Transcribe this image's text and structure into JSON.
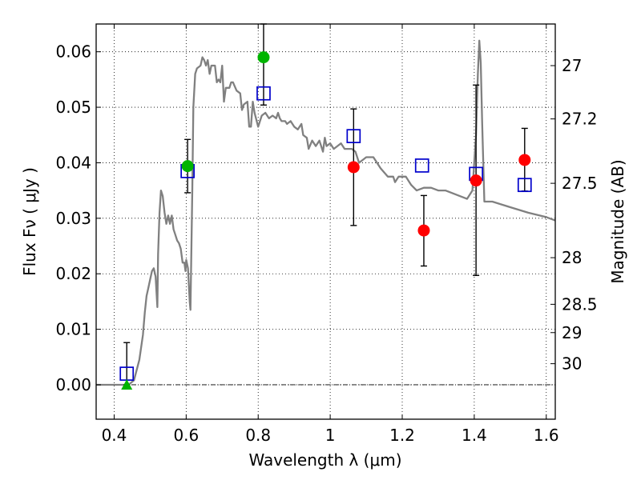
{
  "chart_data": {
    "type": "scatter",
    "xlabel": "Wavelength  λ (μm)",
    "ylabel": "Flux  Fν  ( μJy )",
    "y2label": "Magnitude (AB)",
    "xlim": [
      0.35,
      1.625
    ],
    "ylim": [
      -0.0062,
      0.065
    ],
    "grid": true,
    "x_ticks": [
      0.4,
      0.6,
      0.8,
      1.0,
      1.2,
      1.4,
      1.6
    ],
    "x_tick_labels": [
      "0.4",
      "0.6",
      "0.8",
      "1",
      "1.2",
      "1.4",
      "1.6"
    ],
    "y_ticks": [
      0.0,
      0.01,
      0.02,
      0.03,
      0.04,
      0.05,
      0.06
    ],
    "y_tick_labels": [
      "0.00",
      "0.01",
      "0.02",
      "0.03",
      "0.04",
      "0.05",
      "0.06"
    ],
    "y2_ticks": [
      {
        "label": "27",
        "flux": 0.0575
      },
      {
        "label": "27.2",
        "flux": 0.0479
      },
      {
        "label": "27.5",
        "flux": 0.0363
      },
      {
        "label": "28",
        "flux": 0.0229
      },
      {
        "label": "28.5",
        "flux": 0.0145
      },
      {
        "label": "29",
        "flux": 0.0094
      },
      {
        "label": "30",
        "flux": 0.0038
      }
    ],
    "colors": {
      "model": "#808080",
      "square": "#0000cc",
      "green": "#00b400",
      "red": "#ff0000",
      "errorbar": "#000000"
    },
    "series": [
      {
        "marker": "line",
        "color": "#808080",
        "points": [
          [
            0.35,
            0.0
          ],
          [
            0.42,
            0.0
          ],
          [
            0.44,
            0.0
          ],
          [
            0.455,
            0.0008
          ],
          [
            0.47,
            0.0045
          ],
          [
            0.48,
            0.009
          ],
          [
            0.485,
            0.013
          ],
          [
            0.49,
            0.016
          ],
          [
            0.495,
            0.0175
          ],
          [
            0.5,
            0.019
          ],
          [
            0.505,
            0.0205
          ],
          [
            0.51,
            0.021
          ],
          [
            0.515,
            0.0195
          ],
          [
            0.52,
            0.014
          ],
          [
            0.522,
            0.0235
          ],
          [
            0.526,
            0.031
          ],
          [
            0.53,
            0.035
          ],
          [
            0.535,
            0.034
          ],
          [
            0.54,
            0.031
          ],
          [
            0.545,
            0.029
          ],
          [
            0.55,
            0.0305
          ],
          [
            0.555,
            0.029
          ],
          [
            0.56,
            0.0305
          ],
          [
            0.565,
            0.028
          ],
          [
            0.57,
            0.027
          ],
          [
            0.575,
            0.026
          ],
          [
            0.58,
            0.0255
          ],
          [
            0.585,
            0.0245
          ],
          [
            0.59,
            0.022
          ],
          [
            0.595,
            0.022
          ],
          [
            0.598,
            0.0205
          ],
          [
            0.6,
            0.0225
          ],
          [
            0.605,
            0.021
          ],
          [
            0.61,
            0.015
          ],
          [
            0.612,
            0.0135
          ],
          [
            0.617,
            0.035
          ],
          [
            0.62,
            0.05
          ],
          [
            0.625,
            0.056
          ],
          [
            0.63,
            0.057
          ],
          [
            0.64,
            0.0575
          ],
          [
            0.645,
            0.059
          ],
          [
            0.65,
            0.0585
          ],
          [
            0.655,
            0.0575
          ],
          [
            0.66,
            0.0585
          ],
          [
            0.665,
            0.056
          ],
          [
            0.67,
            0.0575
          ],
          [
            0.68,
            0.0575
          ],
          [
            0.685,
            0.0545
          ],
          [
            0.69,
            0.055
          ],
          [
            0.695,
            0.0545
          ],
          [
            0.7,
            0.0575
          ],
          [
            0.705,
            0.051
          ],
          [
            0.71,
            0.0535
          ],
          [
            0.72,
            0.0535
          ],
          [
            0.725,
            0.0545
          ],
          [
            0.73,
            0.0545
          ],
          [
            0.74,
            0.053
          ],
          [
            0.75,
            0.0525
          ],
          [
            0.755,
            0.0495
          ],
          [
            0.76,
            0.0505
          ],
          [
            0.77,
            0.051
          ],
          [
            0.775,
            0.0465
          ],
          [
            0.78,
            0.0465
          ],
          [
            0.785,
            0.051
          ],
          [
            0.79,
            0.049
          ],
          [
            0.8,
            0.0465
          ],
          [
            0.81,
            0.0485
          ],
          [
            0.82,
            0.049
          ],
          [
            0.83,
            0.048
          ],
          [
            0.84,
            0.0485
          ],
          [
            0.85,
            0.048
          ],
          [
            0.855,
            0.049
          ],
          [
            0.86,
            0.048
          ],
          [
            0.865,
            0.0475
          ],
          [
            0.875,
            0.0475
          ],
          [
            0.88,
            0.047
          ],
          [
            0.89,
            0.0475
          ],
          [
            0.9,
            0.0465
          ],
          [
            0.91,
            0.046
          ],
          [
            0.92,
            0.047
          ],
          [
            0.925,
            0.045
          ],
          [
            0.935,
            0.0445
          ],
          [
            0.94,
            0.0425
          ],
          [
            0.95,
            0.044
          ],
          [
            0.96,
            0.043
          ],
          [
            0.97,
            0.044
          ],
          [
            0.98,
            0.042
          ],
          [
            0.985,
            0.0445
          ],
          [
            0.99,
            0.043
          ],
          [
            1.0,
            0.0435
          ],
          [
            1.01,
            0.0425
          ],
          [
            1.02,
            0.043
          ],
          [
            1.03,
            0.0435
          ],
          [
            1.04,
            0.0425
          ],
          [
            1.06,
            0.0425
          ],
          [
            1.07,
            0.042
          ],
          [
            1.08,
            0.04
          ],
          [
            1.1,
            0.041
          ],
          [
            1.12,
            0.041
          ],
          [
            1.14,
            0.039
          ],
          [
            1.16,
            0.0375
          ],
          [
            1.175,
            0.0375
          ],
          [
            1.18,
            0.0365
          ],
          [
            1.19,
            0.0375
          ],
          [
            1.21,
            0.0375
          ],
          [
            1.225,
            0.036
          ],
          [
            1.24,
            0.035
          ],
          [
            1.26,
            0.0355
          ],
          [
            1.28,
            0.0355
          ],
          [
            1.3,
            0.035
          ],
          [
            1.32,
            0.035
          ],
          [
            1.34,
            0.0345
          ],
          [
            1.36,
            0.034
          ],
          [
            1.38,
            0.0335
          ],
          [
            1.395,
            0.035
          ],
          [
            1.405,
            0.045
          ],
          [
            1.41,
            0.056
          ],
          [
            1.414,
            0.062
          ],
          [
            1.418,
            0.058
          ],
          [
            1.422,
            0.047
          ],
          [
            1.428,
            0.033
          ],
          [
            1.45,
            0.033
          ],
          [
            1.5,
            0.032
          ],
          [
            1.55,
            0.031
          ],
          [
            1.6,
            0.0302
          ],
          [
            1.625,
            0.0296
          ]
        ]
      },
      {
        "marker": "square",
        "color": "#0000cc",
        "points": [
          [
            0.435,
            0.002
          ],
          [
            0.604,
            0.0385
          ],
          [
            0.815,
            0.0525
          ],
          [
            1.065,
            0.0448
          ],
          [
            1.255,
            0.0395
          ],
          [
            1.405,
            0.038
          ],
          [
            1.54,
            0.036
          ]
        ]
      },
      {
        "marker": "circle",
        "color": "#00b400",
        "points": [
          [
            0.604,
            0.0394
          ],
          [
            0.815,
            0.059
          ]
        ]
      },
      {
        "marker": "triangle",
        "color": "#00b400",
        "points": [
          [
            0.435,
            0.0
          ]
        ]
      },
      {
        "marker": "circle",
        "color": "#ff0000",
        "points": [
          [
            1.065,
            0.0392
          ],
          [
            1.26,
            0.0278
          ],
          [
            1.405,
            0.0368
          ],
          [
            1.54,
            0.0405
          ]
        ]
      },
      {
        "marker": "errorbar",
        "color": "#000000",
        "points": [
          [
            0.435,
            0.0,
            0.0076
          ],
          [
            0.604,
            0.0346,
            0.0442
          ],
          [
            0.815,
            0.0504,
            0.065
          ],
          [
            1.065,
            0.0287,
            0.0497
          ],
          [
            1.26,
            0.0214,
            0.0341
          ],
          [
            1.405,
            0.0197,
            0.054
          ],
          [
            1.54,
            0.0349,
            0.0462
          ]
        ]
      }
    ]
  }
}
